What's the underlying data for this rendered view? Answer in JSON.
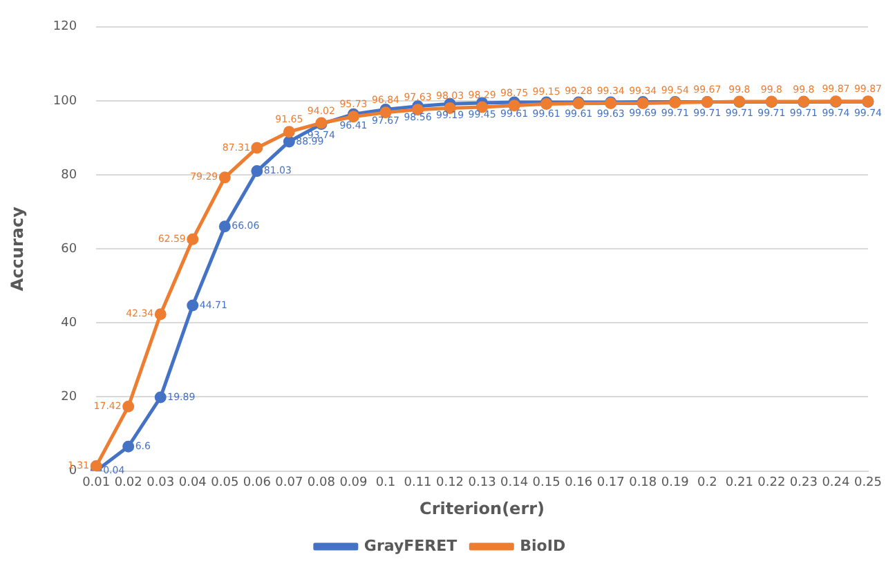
{
  "chart_data": {
    "type": "line",
    "xlabel": "Criterion(err)",
    "ylabel": "Accuracy",
    "categories": [
      "0.01",
      "0.02",
      "0.03",
      "0.04",
      "0.05",
      "0.06",
      "0.07",
      "0.08",
      "0.09",
      "0.1",
      "0.11",
      "0.12",
      "0.13",
      "0.14",
      "0.15",
      "0.16",
      "0.17",
      "0.18",
      "0.19",
      "0.2",
      "0.21",
      "0.22",
      "0.23",
      "0.24",
      "0.25"
    ],
    "series": [
      {
        "name": "GrayFERET",
        "color": "#4472c4",
        "values": [
          0.04,
          6.6,
          19.89,
          44.71,
          66.06,
          81.03,
          88.99,
          93.74,
          96.41,
          97.67,
          98.56,
          99.19,
          99.45,
          99.61,
          99.61,
          99.61,
          99.63,
          99.69,
          99.71,
          99.71,
          99.71,
          99.71,
          99.71,
          99.74,
          99.74
        ]
      },
      {
        "name": "BioID",
        "color": "#ed7d31",
        "values": [
          1.31,
          17.42,
          42.34,
          62.59,
          79.29,
          87.31,
          91.65,
          94.02,
          95.73,
          96.84,
          97.63,
          98.03,
          98.29,
          98.75,
          99.15,
          99.28,
          99.34,
          99.34,
          99.54,
          99.67,
          99.8,
          99.8,
          99.8,
          99.87,
          99.87
        ]
      }
    ],
    "ylim": [
      0,
      120
    ],
    "yticks": [
      0,
      20,
      40,
      60,
      80,
      100,
      120
    ],
    "grid": "y",
    "legend": "bottom",
    "marker": "circle",
    "line_style": "solid",
    "data_labels": true
  }
}
